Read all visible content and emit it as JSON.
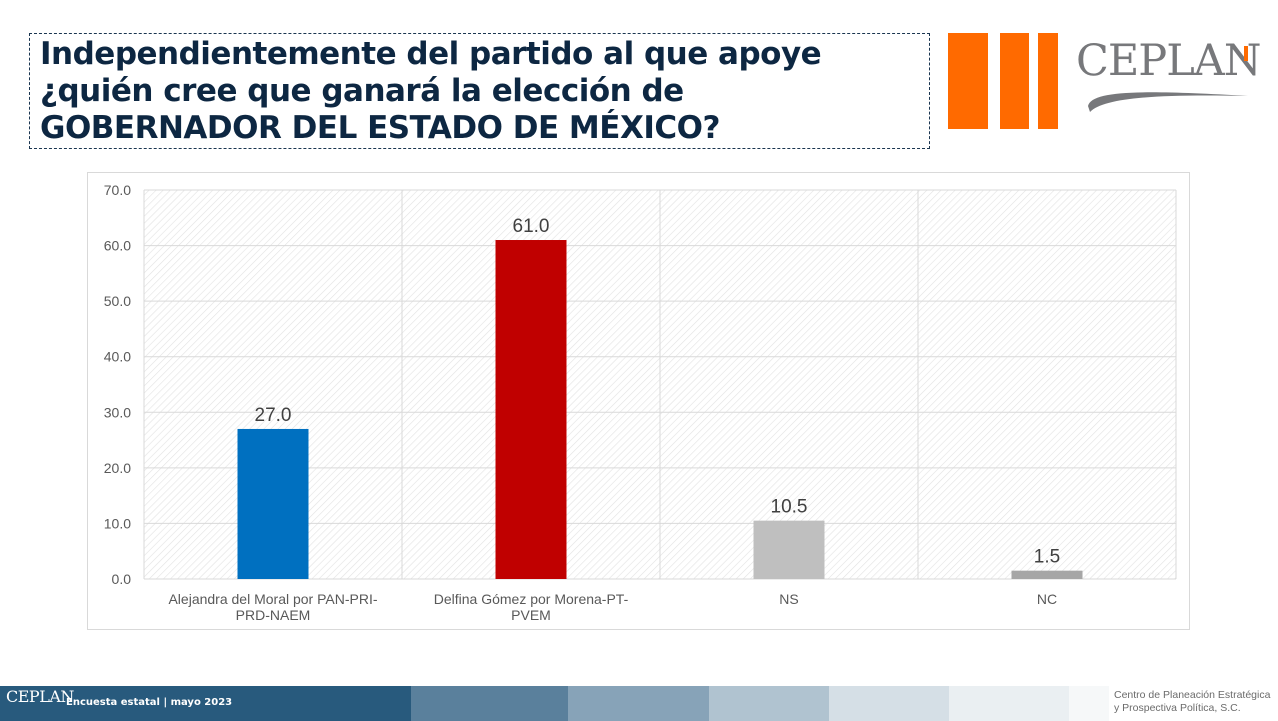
{
  "header": {
    "title_lines": [
      "Independientemente del partido al que apoye",
      "¿quién cree que ganará la elección de",
      "GOBERNADOR DEL ESTADO DE MÉXICO?"
    ],
    "logo_text": "CEPLAN"
  },
  "chart_data": {
    "type": "bar",
    "categories": [
      [
        "Alejandra del Moral por PAN-PRI-",
        "PRD-NAEM"
      ],
      [
        "Delfina Gómez por Morena-PT-",
        "PVEM"
      ],
      [
        "NS"
      ],
      [
        "NC"
      ]
    ],
    "values": [
      27.0,
      61.0,
      10.5,
      1.5
    ],
    "value_labels": [
      "27.0",
      "61.0",
      "10.5",
      "1.5"
    ],
    "bar_colors": [
      "#0070c0",
      "#c00000",
      "#bfbfbf",
      "#a6a6a6"
    ],
    "ylim": [
      0,
      70
    ],
    "yticks": [
      "0.0",
      "10.0",
      "20.0",
      "30.0",
      "40.0",
      "50.0",
      "60.0",
      "70.0"
    ],
    "grid": true,
    "legend": "none"
  },
  "footer": {
    "brand": "CEPLAN",
    "label": "Encuesta estatal | mayo 2023",
    "org_lines": [
      "Centro de Planeación Estratégica",
      "y Prospectiva Política, S.C."
    ],
    "colors": [
      "#285a7d",
      "#5a809c",
      "#87a3b8",
      "#b0c3d0",
      "#d5dfe6",
      "#eaeff2",
      "#f6f8f9"
    ]
  }
}
